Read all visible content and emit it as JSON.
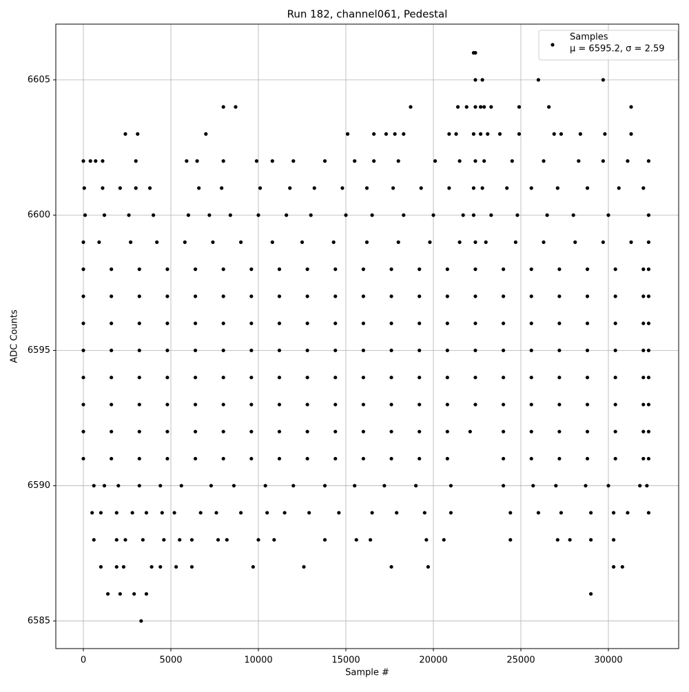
{
  "chart_data": {
    "type": "scatter",
    "title": "Run 182, channel061, Pedestal",
    "x_label": "Sample #",
    "y_label": "ADC Counts",
    "xlim": [
      -1575,
      34016
    ],
    "ylim": [
      6583.98,
      6607.06
    ],
    "xticks": [
      0,
      5000,
      10000,
      15000,
      20000,
      25000,
      30000
    ],
    "yticks": [
      6585,
      6590,
      6595,
      6600,
      6605
    ],
    "grid": true,
    "legend": "upper right",
    "legend_note": "μ = 6595.2, σ = 2.59",
    "series": [
      {
        "name": "Samples",
        "color": "#000000",
        "x": [
          22300,
          22400,
          22400,
          22800,
          26000,
          29700,
          8000,
          8700,
          18700,
          21400,
          21900,
          22400,
          22700,
          22900,
          23300,
          24900,
          26600,
          31300,
          2400,
          3100,
          7000,
          15100,
          16600,
          17300,
          17800,
          18300,
          20900,
          21300,
          22300,
          22700,
          23100,
          23800,
          24900,
          26900,
          27300,
          28400,
          29800,
          31300,
          0,
          400,
          700,
          1100,
          3000,
          5900,
          6500,
          8000,
          9900,
          10800,
          12000,
          13800,
          15500,
          16600,
          18000,
          20100,
          21500,
          22400,
          22900,
          24500,
          26300,
          28300,
          29700,
          31100,
          32300,
          50,
          1100,
          2100,
          3000,
          3800,
          6600,
          7900,
          10100,
          11800,
          13200,
          14800,
          16200,
          17700,
          19300,
          20900,
          22300,
          22800,
          24200,
          25600,
          27100,
          28800,
          30600,
          32000,
          100,
          1200,
          2600,
          4000,
          6000,
          7200,
          8400,
          10000,
          11600,
          13000,
          15000,
          16500,
          18300,
          20000,
          21700,
          22300,
          23300,
          24800,
          26500,
          28000,
          30000,
          32300,
          0,
          900,
          2700,
          4200,
          5800,
          7400,
          9000,
          10800,
          12500,
          14300,
          16200,
          18000,
          19800,
          21500,
          22400,
          23000,
          24700,
          26300,
          28100,
          29700,
          31300,
          32300,
          0,
          1600,
          3200,
          4800,
          6400,
          8000,
          9600,
          11200,
          12800,
          14400,
          16000,
          17600,
          19200,
          20800,
          22400,
          24000,
          25600,
          27200,
          28800,
          30400,
          32000,
          32300,
          0,
          1600,
          3200,
          4800,
          6400,
          8000,
          9600,
          11200,
          12800,
          14400,
          16000,
          17600,
          19200,
          20800,
          22400,
          24000,
          25600,
          27200,
          28800,
          30400,
          32000,
          32300,
          0,
          1600,
          3200,
          4800,
          6400,
          8000,
          9600,
          11200,
          12800,
          14400,
          16000,
          17600,
          19200,
          20800,
          22400,
          24000,
          25600,
          27200,
          28800,
          30400,
          32000,
          32300,
          0,
          1600,
          3200,
          4800,
          6400,
          8000,
          9600,
          11200,
          12800,
          14400,
          16000,
          17600,
          19200,
          20800,
          22400,
          24000,
          25600,
          27200,
          28800,
          30400,
          32000,
          32300,
          0,
          1600,
          3200,
          4800,
          6400,
          8000,
          9600,
          11200,
          12800,
          14400,
          16000,
          17600,
          19200,
          20800,
          22400,
          24000,
          25600,
          27200,
          28800,
          30400,
          32000,
          32300,
          0,
          1600,
          3200,
          4800,
          6400,
          8000,
          9600,
          11200,
          12800,
          14400,
          16000,
          17600,
          19200,
          20800,
          22400,
          24000,
          25600,
          27200,
          28800,
          30400,
          32000,
          32300,
          0,
          1600,
          3200,
          4800,
          6400,
          8000,
          9600,
          11200,
          12800,
          14400,
          16000,
          17600,
          19200,
          20800,
          22100,
          24000,
          25600,
          27200,
          28800,
          30400,
          32000,
          32300,
          0,
          1600,
          3200,
          4800,
          6400,
          8000,
          9600,
          11200,
          12800,
          14400,
          16000,
          17600,
          19200,
          20800,
          24000,
          25600,
          27200,
          28800,
          30400,
          32000,
          32300,
          600,
          1200,
          2000,
          3200,
          4400,
          5600,
          7300,
          8600,
          10400,
          12000,
          13800,
          15500,
          17200,
          19000,
          21000,
          24000,
          25700,
          27000,
          28700,
          30000,
          31800,
          32200,
          500,
          1000,
          1900,
          2800,
          3600,
          4500,
          5200,
          6700,
          7600,
          9000,
          10500,
          11500,
          12900,
          14600,
          16500,
          17900,
          19500,
          21000,
          24400,
          26000,
          27300,
          29000,
          30300,
          31100,
          32300,
          600,
          1900,
          2400,
          3400,
          4600,
          5500,
          6200,
          7700,
          8200,
          10000,
          10900,
          13800,
          15600,
          16400,
          19600,
          20600,
          24400,
          27100,
          27800,
          29000,
          30300,
          1000,
          1900,
          2300,
          3900,
          4400,
          5300,
          6200,
          9700,
          12600,
          17600,
          19700,
          30300,
          30800,
          1400,
          2100,
          2900,
          3600,
          29000,
          3300
        ],
        "values": [
          6606,
          6606,
          6605,
          6605,
          6605,
          6605,
          6604,
          6604,
          6604,
          6604,
          6604,
          6604,
          6604,
          6604,
          6604,
          6604,
          6604,
          6604,
          6603,
          6603,
          6603,
          6603,
          6603,
          6603,
          6603,
          6603,
          6603,
          6603,
          6603,
          6603,
          6603,
          6603,
          6603,
          6603,
          6603,
          6603,
          6603,
          6603,
          6602,
          6602,
          6602,
          6602,
          6602,
          6602,
          6602,
          6602,
          6602,
          6602,
          6602,
          6602,
          6602,
          6602,
          6602,
          6602,
          6602,
          6602,
          6602,
          6602,
          6602,
          6602,
          6602,
          6602,
          6602,
          6601,
          6601,
          6601,
          6601,
          6601,
          6601,
          6601,
          6601,
          6601,
          6601,
          6601,
          6601,
          6601,
          6601,
          6601,
          6601,
          6601,
          6601,
          6601,
          6601,
          6601,
          6601,
          6601,
          6600,
          6600,
          6600,
          6600,
          6600,
          6600,
          6600,
          6600,
          6600,
          6600,
          6600,
          6600,
          6600,
          6600,
          6600,
          6600,
          6600,
          6600,
          6600,
          6600,
          6600,
          6600,
          6599,
          6599,
          6599,
          6599,
          6599,
          6599,
          6599,
          6599,
          6599,
          6599,
          6599,
          6599,
          6599,
          6599,
          6599,
          6599,
          6599,
          6599,
          6599,
          6599,
          6599,
          6599,
          6598,
          6598,
          6598,
          6598,
          6598,
          6598,
          6598,
          6598,
          6598,
          6598,
          6598,
          6598,
          6598,
          6598,
          6598,
          6598,
          6598,
          6598,
          6598,
          6598,
          6598,
          6598,
          6597,
          6597,
          6597,
          6597,
          6597,
          6597,
          6597,
          6597,
          6597,
          6597,
          6597,
          6597,
          6597,
          6597,
          6597,
          6597,
          6597,
          6597,
          6597,
          6597,
          6597,
          6597,
          6596,
          6596,
          6596,
          6596,
          6596,
          6596,
          6596,
          6596,
          6596,
          6596,
          6596,
          6596,
          6596,
          6596,
          6596,
          6596,
          6596,
          6596,
          6596,
          6596,
          6596,
          6596,
          6595,
          6595,
          6595,
          6595,
          6595,
          6595,
          6595,
          6595,
          6595,
          6595,
          6595,
          6595,
          6595,
          6595,
          6595,
          6595,
          6595,
          6595,
          6595,
          6595,
          6595,
          6595,
          6594,
          6594,
          6594,
          6594,
          6594,
          6594,
          6594,
          6594,
          6594,
          6594,
          6594,
          6594,
          6594,
          6594,
          6594,
          6594,
          6594,
          6594,
          6594,
          6594,
          6594,
          6594,
          6593,
          6593,
          6593,
          6593,
          6593,
          6593,
          6593,
          6593,
          6593,
          6593,
          6593,
          6593,
          6593,
          6593,
          6593,
          6593,
          6593,
          6593,
          6593,
          6593,
          6593,
          6593,
          6592,
          6592,
          6592,
          6592,
          6592,
          6592,
          6592,
          6592,
          6592,
          6592,
          6592,
          6592,
          6592,
          6592,
          6592,
          6592,
          6592,
          6592,
          6592,
          6592,
          6592,
          6592,
          6591,
          6591,
          6591,
          6591,
          6591,
          6591,
          6591,
          6591,
          6591,
          6591,
          6591,
          6591,
          6591,
          6591,
          6591,
          6591,
          6591,
          6591,
          6591,
          6591,
          6591,
          6590,
          6590,
          6590,
          6590,
          6590,
          6590,
          6590,
          6590,
          6590,
          6590,
          6590,
          6590,
          6590,
          6590,
          6590,
          6590,
          6590,
          6590,
          6590,
          6590,
          6590,
          6590,
          6589,
          6589,
          6589,
          6589,
          6589,
          6589,
          6589,
          6589,
          6589,
          6589,
          6589,
          6589,
          6589,
          6589,
          6589,
          6589,
          6589,
          6589,
          6589,
          6589,
          6589,
          6589,
          6589,
          6589,
          6589,
          6588,
          6588,
          6588,
          6588,
          6588,
          6588,
          6588,
          6588,
          6588,
          6588,
          6588,
          6588,
          6588,
          6588,
          6588,
          6588,
          6588,
          6588,
          6588,
          6588,
          6588,
          6587,
          6587,
          6587,
          6587,
          6587,
          6587,
          6587,
          6587,
          6587,
          6587,
          6587,
          6587,
          6587,
          6586,
          6586,
          6586,
          6586,
          6586,
          6585
        ]
      }
    ]
  }
}
